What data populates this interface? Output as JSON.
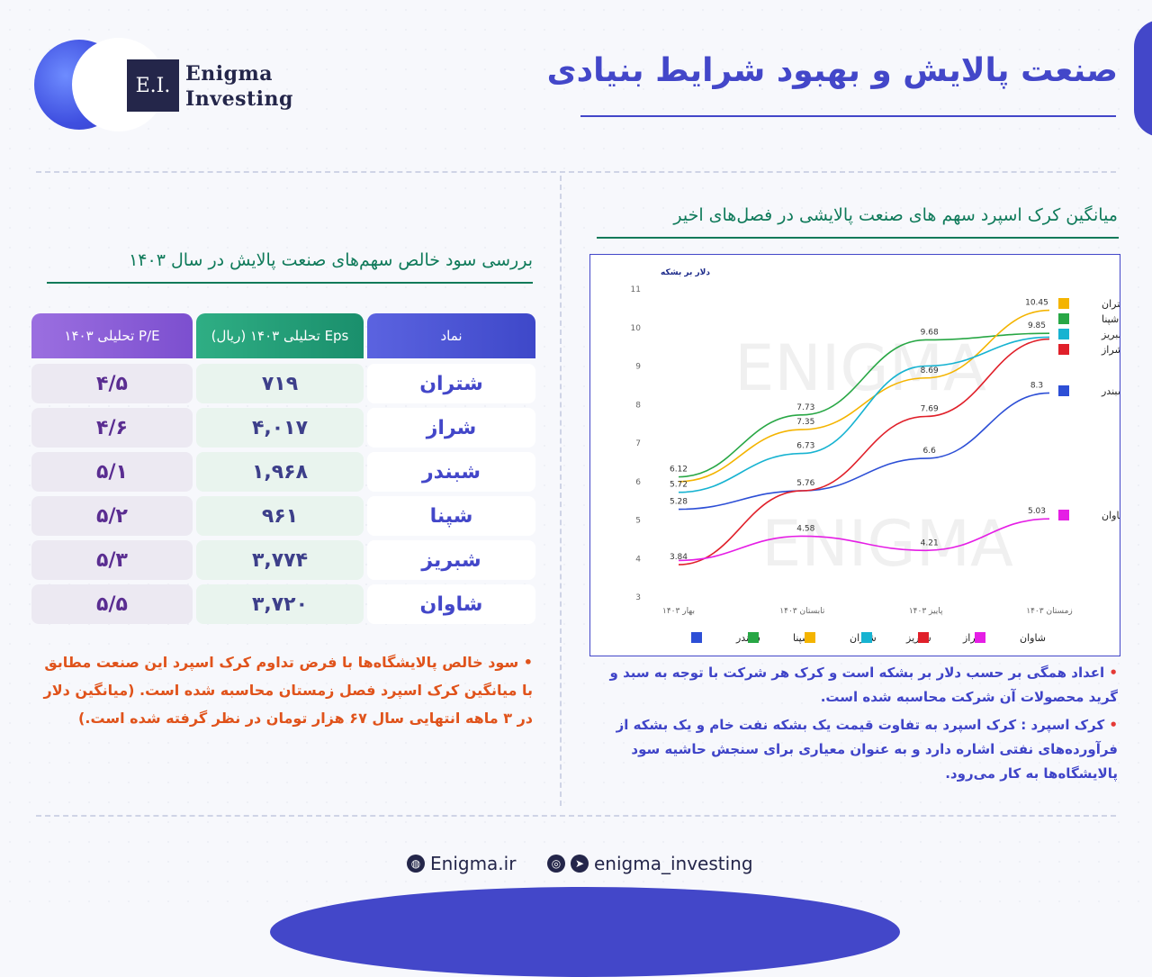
{
  "brand": {
    "mark": "E.I.",
    "line1": "Enigma",
    "line2": "Investing"
  },
  "page_title": "صنعت پالایش و بهبود شرایط بنیادی",
  "chart_section": {
    "title": "میانگین کرک اسپرد سهم های صنعت پالایشی در فصل‌های اخیر",
    "notes": [
      "اعداد همگی بر حسب دلار بر بشکه است و کرک هر شرکت با توجه به سبد و گرید محصولات آن شرکت محاسبه شده است.",
      "کرک اسپرد : کرک اسپرد به تفاوت قیمت یک بشکه نفت خام و یک بشکه از فرآورده‌های نفتی اشاره دارد و به عنوان معیاری برای سنجش حاشیه سود پالایشگاه‌ها به کار می‌رود."
    ]
  },
  "chart_data": {
    "type": "line",
    "ylabel": "دلار بر بشکه",
    "ylim": [
      3,
      11
    ],
    "yticks": [
      "3",
      "4",
      "5",
      "6",
      "7",
      "8",
      "9",
      "10",
      "11"
    ],
    "categories": [
      "بهار ۱۴۰۳",
      "تابستان ۱۴۰۳",
      "پاییز ۱۴۰۳",
      "زمستان ۱۴۰۳"
    ],
    "series": [
      {
        "name": "شبندر",
        "color": "#2d4fd6",
        "values": [
          5.28,
          5.76,
          6.6,
          8.3
        ]
      },
      {
        "name": "شپنا",
        "color": "#28a745",
        "values": [
          6.12,
          7.73,
          9.68,
          9.85
        ]
      },
      {
        "name": "شتران",
        "color": "#f4b400",
        "values": [
          6.0,
          7.35,
          8.69,
          10.45
        ]
      },
      {
        "name": "شبریز",
        "color": "#17b3d1",
        "values": [
          5.72,
          6.73,
          9.0,
          9.75
        ]
      },
      {
        "name": "شراز",
        "color": "#e0202a",
        "values": [
          3.84,
          5.76,
          7.69,
          9.7
        ]
      },
      {
        "name": "شاوان",
        "color": "#e51ee5",
        "values": [
          3.95,
          4.58,
          4.21,
          5.03
        ]
      }
    ],
    "data_labels": [
      {
        "text": "6.12",
        "x": 0,
        "y": 6.12
      },
      {
        "text": "5.72",
        "x": 0,
        "y": 5.72
      },
      {
        "text": "5.28",
        "x": 0,
        "y": 5.28
      },
      {
        "text": "3.84",
        "x": 0,
        "y": 3.84
      },
      {
        "text": "7.73",
        "x": 1,
        "y": 7.73
      },
      {
        "text": "7.35",
        "x": 1,
        "y": 7.35
      },
      {
        "text": "6.73",
        "x": 1,
        "y": 6.73
      },
      {
        "text": "5.76",
        "x": 1,
        "y": 5.76
      },
      {
        "text": "4.58",
        "x": 1,
        "y": 4.58
      },
      {
        "text": "9.68",
        "x": 2,
        "y": 9.68
      },
      {
        "text": "8.69",
        "x": 2,
        "y": 8.69
      },
      {
        "text": "7.69",
        "x": 2,
        "y": 7.69
      },
      {
        "text": "6.6",
        "x": 2,
        "y": 6.6
      },
      {
        "text": "4.21",
        "x": 2,
        "y": 4.21
      },
      {
        "text": "10.45",
        "x": 3,
        "y": 10.45
      },
      {
        "text": "9.85",
        "x": 3,
        "y": 9.85
      },
      {
        "text": "8.3",
        "x": 3,
        "y": 8.3
      },
      {
        "text": "5.03",
        "x": 3,
        "y": 5.03
      }
    ],
    "right_legend": [
      {
        "group": [
          "شتران",
          "شپنا",
          "شبریز",
          "شراز"
        ],
        "colors": [
          "#f4b400",
          "#28a745",
          "#17b3d1",
          "#e0202a"
        ]
      },
      {
        "group": [
          "شبندر"
        ],
        "colors": [
          "#2d4fd6"
        ]
      },
      {
        "group": [
          "شاوان"
        ],
        "colors": [
          "#e51ee5"
        ]
      }
    ],
    "legend_position": "bottom",
    "grid": false,
    "watermark": "ENIGMA"
  },
  "table_section": {
    "title": "بررسی سود خالص سهم‌های صنعت پالایش در سال ۱۴۰۳",
    "headers": {
      "symbol": "نماد",
      "eps": "Eps تحلیلی ۱۴۰۳ (ریال)",
      "pe": "P/E تحلیلی ۱۴۰۳"
    },
    "rows": [
      {
        "symbol": "شتران",
        "eps": "۷۱۹",
        "pe": "۴/۵"
      },
      {
        "symbol": "شراز",
        "eps": "۴,۰۱۷",
        "pe": "۴/۶"
      },
      {
        "symbol": "شبندر",
        "eps": "۱,۹۶۸",
        "pe": "۵/۱"
      },
      {
        "symbol": "شپنا",
        "eps": "۹۶۱",
        "pe": "۵/۲"
      },
      {
        "symbol": "شبریز",
        "eps": "۳,۷۷۴",
        "pe": "۵/۳"
      },
      {
        "symbol": "شاوان",
        "eps": "۳,۷۲۰",
        "pe": "۵/۵"
      }
    ],
    "note": "سود خالص پالایشگاه‌ها با فرض تداوم کرک اسپرد این صنعت مطابق با میانگین کرک اسپرد فصل زمستان محاسبه شده است. (میانگین دلار در ۳ ماهه انتهایی سال ۶۷ هزار تومان در نظر گرفته شده است.)"
  },
  "footer": {
    "site": "Enigma.ir",
    "handle": "enigma_investing"
  },
  "colors": {
    "primary": "#4347c9",
    "green": "#0f7a5a",
    "orange": "#e0531b"
  }
}
